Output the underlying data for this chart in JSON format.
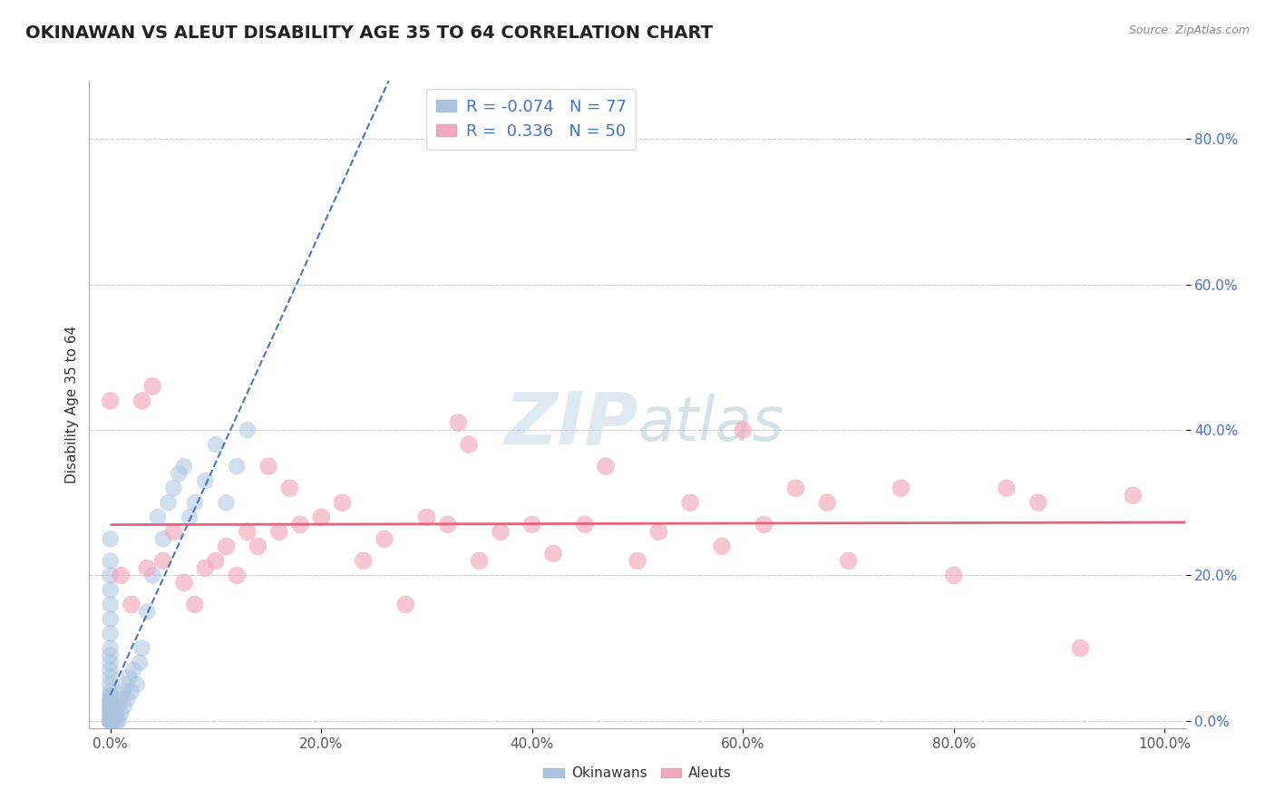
{
  "title": "OKINAWAN VS ALEUT DISABILITY AGE 35 TO 64 CORRELATION CHART",
  "source": "Source: ZipAtlas.com",
  "ylabel": "Disability Age 35 to 64",
  "xlim": [
    -0.02,
    1.02
  ],
  "ylim": [
    -0.01,
    0.88
  ],
  "x_ticks": [
    0.0,
    0.2,
    0.4,
    0.6,
    0.8,
    1.0
  ],
  "x_tick_labels": [
    "0.0%",
    "20.0%",
    "40.0%",
    "60.0%",
    "80.0%",
    "100.0%"
  ],
  "y_ticks": [
    0.0,
    0.2,
    0.4,
    0.6,
    0.8
  ],
  "y_tick_labels": [
    "0.0%",
    "20.0%",
    "40.0%",
    "60.0%",
    "80.0%"
  ],
  "okinawan_R": -0.074,
  "okinawan_N": 77,
  "aleut_R": 0.336,
  "aleut_N": 50,
  "okinawan_color": "#aac4e0",
  "aleut_color": "#f4a8bc",
  "okinawan_line_color": "#4477bb",
  "aleut_line_color": "#e8607a",
  "grid_color": "#bbbbbb",
  "background_color": "#ffffff",
  "watermark_color": "#c8d8e8",
  "legend_entries": [
    "Okinawans",
    "Aleuts"
  ],
  "okinawan_x": [
    0.0,
    0.0,
    0.0,
    0.0,
    0.0,
    0.0,
    0.0,
    0.0,
    0.0,
    0.0,
    0.0,
    0.0,
    0.0,
    0.0,
    0.0,
    0.0,
    0.0,
    0.0,
    0.0,
    0.0,
    0.0,
    0.0,
    0.0,
    0.0,
    0.0,
    0.0,
    0.0,
    0.0,
    0.0,
    0.0,
    0.0,
    0.0,
    0.0,
    0.0,
    0.0,
    0.0,
    0.0,
    0.0,
    0.0,
    0.0,
    0.0,
    0.0,
    0.0,
    0.0,
    0.0,
    0.003,
    0.005,
    0.006,
    0.007,
    0.008,
    0.009,
    0.01,
    0.012,
    0.013,
    0.015,
    0.016,
    0.018,
    0.02,
    0.022,
    0.025,
    0.028,
    0.03,
    0.035,
    0.04,
    0.045,
    0.05,
    0.055,
    0.06,
    0.065,
    0.07,
    0.075,
    0.08,
    0.09,
    0.1,
    0.11,
    0.12,
    0.13
  ],
  "okinawan_y": [
    0.0,
    0.0,
    0.0,
    0.0,
    0.0,
    0.0,
    0.0,
    0.0,
    0.0,
    0.0,
    0.0,
    0.0,
    0.0,
    0.0,
    0.0,
    0.0,
    0.0,
    0.0,
    0.0,
    0.005,
    0.008,
    0.01,
    0.012,
    0.015,
    0.018,
    0.02,
    0.022,
    0.025,
    0.028,
    0.03,
    0.035,
    0.04,
    0.05,
    0.06,
    0.07,
    0.08,
    0.09,
    0.1,
    0.12,
    0.14,
    0.16,
    0.18,
    0.2,
    0.22,
    0.25,
    0.0,
    0.01,
    0.0,
    0.02,
    0.0,
    0.03,
    0.01,
    0.04,
    0.02,
    0.05,
    0.03,
    0.06,
    0.04,
    0.07,
    0.05,
    0.08,
    0.1,
    0.15,
    0.2,
    0.28,
    0.25,
    0.3,
    0.32,
    0.34,
    0.35,
    0.28,
    0.3,
    0.33,
    0.38,
    0.3,
    0.35,
    0.4
  ],
  "aleut_x": [
    0.0,
    0.01,
    0.02,
    0.03,
    0.035,
    0.04,
    0.05,
    0.06,
    0.07,
    0.08,
    0.09,
    0.1,
    0.11,
    0.12,
    0.13,
    0.14,
    0.15,
    0.16,
    0.17,
    0.18,
    0.2,
    0.22,
    0.24,
    0.26,
    0.28,
    0.3,
    0.32,
    0.33,
    0.34,
    0.35,
    0.37,
    0.4,
    0.42,
    0.45,
    0.47,
    0.5,
    0.52,
    0.55,
    0.58,
    0.6,
    0.62,
    0.65,
    0.68,
    0.7,
    0.75,
    0.8,
    0.85,
    0.88,
    0.92,
    0.97
  ],
  "aleut_y": [
    0.44,
    0.2,
    0.16,
    0.44,
    0.21,
    0.46,
    0.22,
    0.26,
    0.19,
    0.16,
    0.21,
    0.22,
    0.24,
    0.2,
    0.26,
    0.24,
    0.35,
    0.26,
    0.32,
    0.27,
    0.28,
    0.3,
    0.22,
    0.25,
    0.16,
    0.28,
    0.27,
    0.41,
    0.38,
    0.22,
    0.26,
    0.27,
    0.23,
    0.27,
    0.35,
    0.22,
    0.26,
    0.3,
    0.24,
    0.4,
    0.27,
    0.32,
    0.3,
    0.22,
    0.32,
    0.2,
    0.32,
    0.3,
    0.1,
    0.31
  ]
}
